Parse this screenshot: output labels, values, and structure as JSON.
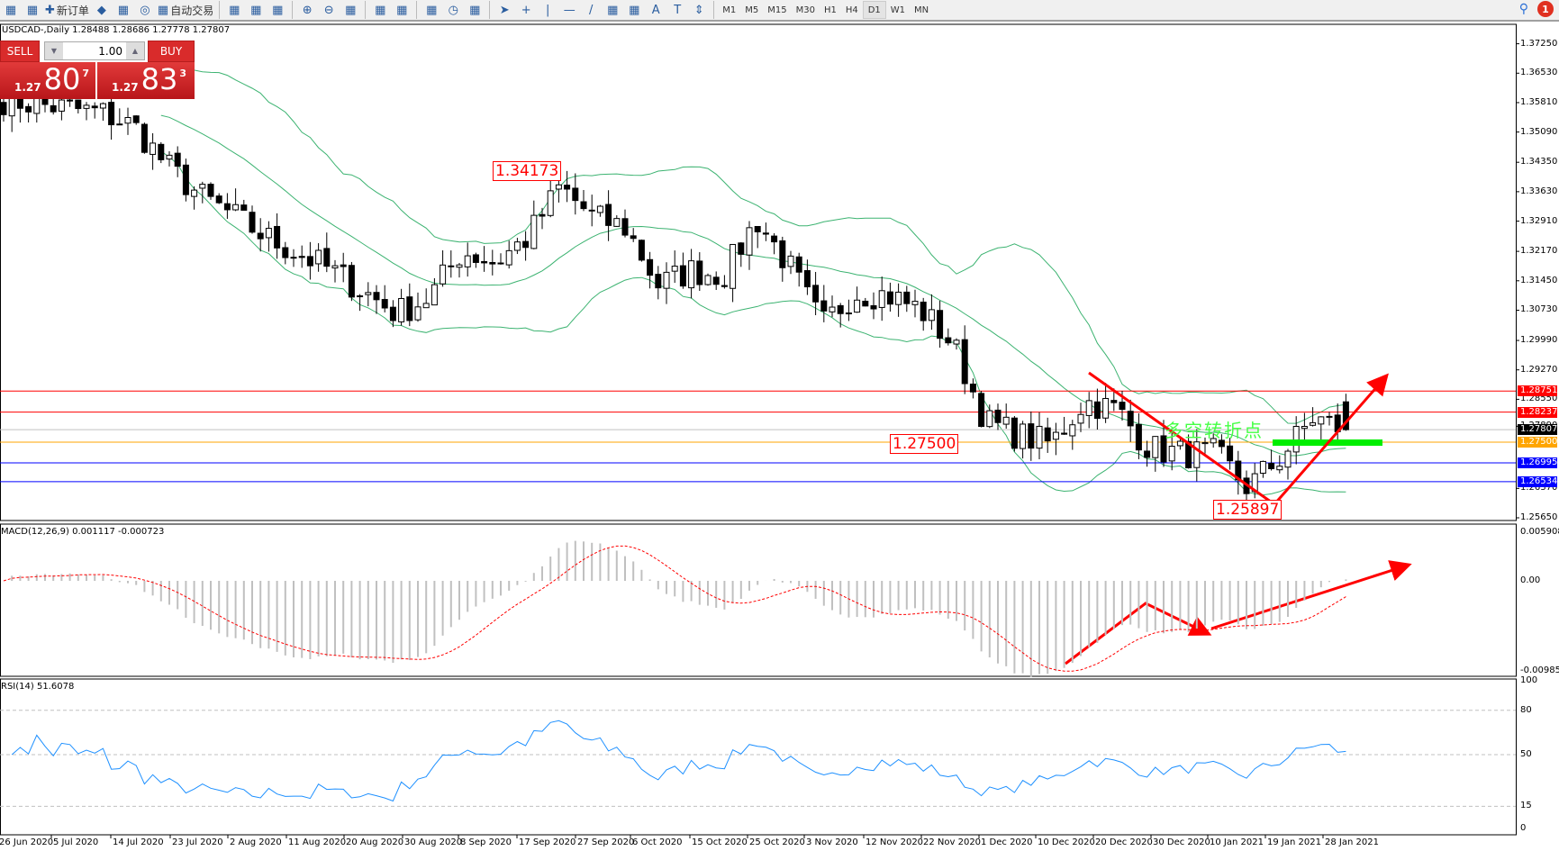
{
  "toolbar": {
    "new_order": "新订单",
    "auto_trading": "自动交易",
    "icons": [
      "new-chart-icon",
      "zoom-profile-icon",
      "new-order-icon",
      "gold-icon",
      "navigator-icon",
      "signal-icon",
      "auto-trading-icon",
      "bar-chart-icon",
      "candlestick-icon",
      "line-chart-icon",
      "zoom-in-icon",
      "zoom-out-icon",
      "tile-icon",
      "autoscroll-icon",
      "chart-shift-icon",
      "indicators-icon",
      "periods-icon",
      "templates-icon",
      "cursor-icon",
      "crosshair-icon",
      "vertical-line-icon",
      "horizontal-line-icon",
      "trendline-icon",
      "fibonacci-icon",
      "fibonacci-fan-icon",
      "text-icon",
      "text-label-icon",
      "arrows-icon"
    ],
    "timeframes": [
      "M1",
      "M5",
      "M15",
      "M30",
      "H1",
      "H4",
      "D1",
      "W1",
      "MN"
    ],
    "active_timeframe": "D1",
    "notification_count": "1"
  },
  "chart": {
    "header": "USDCAD-,Daily  1.28488 1.28686 1.27778 1.27807",
    "trade_panel": {
      "sell": "SELL",
      "buy": "BUY",
      "lot": "1.00",
      "sell_small": "1.27",
      "sell_big": "80",
      "sell_pip": "7",
      "buy_small": "1.27",
      "buy_big": "83",
      "buy_pip": "3"
    },
    "price_ticks": [
      "1.37250",
      "1.36530",
      "1.35810",
      "1.35090",
      "1.34350",
      "1.33630",
      "1.32910",
      "1.32170",
      "1.31450",
      "1.30730",
      "1.29990",
      "1.29270",
      "1.28550",
      "1.27890",
      "1.26370",
      "1.25650"
    ],
    "levels": [
      {
        "price": "1.28751",
        "color": "#ff0000"
      },
      {
        "price": "1.28237",
        "color": "#ff0000"
      },
      {
        "price": "1.27807",
        "color": "#000000",
        "line": "#c0c0c0"
      },
      {
        "price": "1.27500",
        "color": "#ffa500"
      },
      {
        "price": "1.26995",
        "color": "#0000ff"
      },
      {
        "price": "1.26534",
        "color": "#0000ff"
      }
    ],
    "annotations": {
      "high_label": "1.34173",
      "level_label": "1.27500",
      "low_label": "1.25897",
      "reversal_text": "多空转折点"
    },
    "dates": [
      "26 Jun 2020",
      "5 Jul 2020",
      "14 Jul 2020",
      "23 Jul 2020",
      "2 Aug 2020",
      "11 Aug 2020",
      "20 Aug 2020",
      "30 Aug 2020",
      "8 Sep 2020",
      "17 Sep 2020",
      "27 Sep 2020",
      "6 Oct 2020",
      "15 Oct 2020",
      "25 Oct 2020",
      "3 Nov 2020",
      "12 Nov 2020",
      "22 Nov 2020",
      "1 Dec 2020",
      "10 Dec 2020",
      "20 Dec 2020",
      "30 Dec 2020",
      "10 Jan 2021",
      "19 Jan 2021",
      "28 Jan 2021"
    ],
    "colors": {
      "bands": "#3cb371",
      "arrows": "#ff0000",
      "support_bar": "#00ee00"
    }
  },
  "macd": {
    "label": "MACD(12,26,9) 0.001117 -0.000723",
    "ticks": [
      "0.005908",
      "0.00",
      "-0.009851"
    ]
  },
  "rsi": {
    "label": "RSI(14) 51.6078",
    "ticks": [
      "100",
      "80",
      "50",
      "15",
      "0"
    ]
  },
  "chart_data": {
    "type": "candlestick",
    "symbol": "USDCAD",
    "timeframe": "Daily",
    "last_ohlc": {
      "open": 1.28488,
      "high": 1.28686,
      "low": 1.27778,
      "close": 1.27807
    },
    "ylim": [
      1.2565,
      1.3725
    ],
    "close_trace_approx": [
      1.3589,
      1.3577,
      1.3566,
      1.3556,
      1.3522,
      1.3425,
      1.3353,
      1.3305,
      1.3252,
      1.3212,
      1.3171,
      1.3119,
      1.3065,
      1.3105,
      1.3218,
      1.319,
      1.325,
      1.3375,
      1.33,
      1.3275,
      1.3135,
      1.317,
      1.316,
      1.3295,
      1.318,
      1.3036,
      1.3117,
      1.3111,
      1.3075,
      1.299,
      1.28,
      1.2767,
      1.2746,
      1.285,
      1.283,
      1.2735,
      1.2722,
      1.2722,
      1.264,
      1.2713,
      1.281,
      1.27807
    ]
  }
}
